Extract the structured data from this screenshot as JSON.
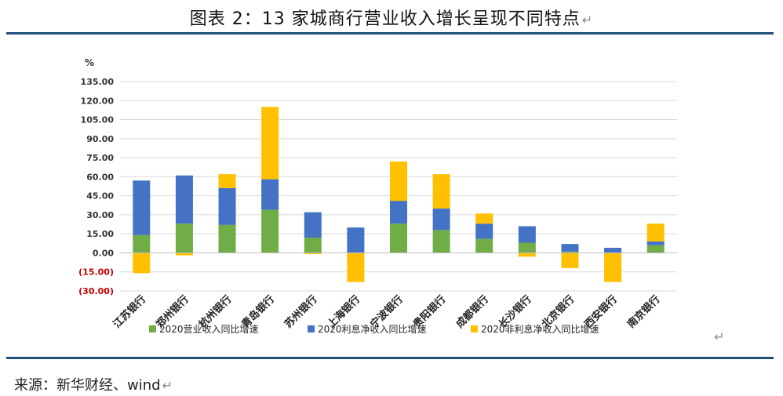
{
  "title": "图表 2：13 家城商行营业收入增长呈现不同特点",
  "return_glyph": "↵",
  "source": "来源：新华财经、wind",
  "chart_data": {
    "type": "bar",
    "stacked": true,
    "unit_label": "%",
    "ylim": [
      -30,
      135
    ],
    "y_ticks": [
      135,
      120,
      105,
      90,
      75,
      60,
      45,
      30,
      15,
      0,
      -15,
      -30
    ],
    "y_tick_labels": [
      "135.00",
      "120.00",
      "105.00",
      "90.00",
      "75.00",
      "60.00",
      "45.00",
      "30.00",
      "15.00",
      "0.00",
      "(15.00)",
      "(30.00)"
    ],
    "negative_tick_color": "#c00000",
    "categories": [
      "江苏银行",
      "郑州银行",
      "杭州银行",
      "青岛银行",
      "苏州银行",
      "上海银行",
      "宁波银行",
      "贵阳银行",
      "成都银行",
      "长沙银行",
      "北京银行",
      "西安银行",
      "南京银行"
    ],
    "series": [
      {
        "name": "2020营业收入同比增速",
        "color": "#70ad47",
        "values": [
          14,
          23,
          22,
          34,
          12,
          0,
          23,
          18,
          11,
          8,
          1,
          0,
          6
        ]
      },
      {
        "name": "2020利息净收入同比增速",
        "color": "#4472c4",
        "values": [
          43,
          38,
          29,
          24,
          20,
          20,
          18,
          17,
          12,
          13,
          6,
          4,
          3
        ]
      },
      {
        "name": "2020非利息净收入同比增速",
        "color": "#ffc000",
        "values": [
          -16,
          -2,
          11,
          57,
          -1,
          -23,
          31,
          27,
          8,
          -3,
          -12,
          -23,
          14
        ]
      }
    ],
    "legend_position": "bottom",
    "grid": true
  }
}
